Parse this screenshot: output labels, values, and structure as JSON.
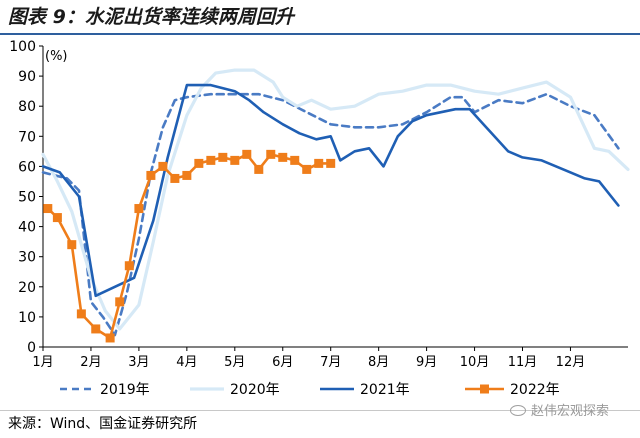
{
  "title": "图表 9：水泥出货率连续两周回升",
  "source": "来源：Wind、国金证券研究所",
  "watermark": "赵伟宏观探索",
  "chart_data": {
    "type": "line",
    "unit_label": "(%)",
    "ylim": [
      0,
      100
    ],
    "yticks": [
      0,
      10,
      20,
      30,
      40,
      50,
      60,
      70,
      80,
      90,
      100
    ],
    "xlim": [
      1,
      13.2
    ],
    "xticks": [
      1,
      2,
      3,
      4,
      5,
      6,
      7,
      8,
      9,
      10,
      11,
      12
    ],
    "xtick_labels": [
      "1月",
      "2月",
      "3月",
      "4月",
      "5月",
      "6月",
      "7月",
      "8月",
      "9月",
      "10月",
      "11月",
      "12月"
    ],
    "grid": false,
    "legend_position": "bottom",
    "series": [
      {
        "name": "2019年",
        "color": "#4a7bc4",
        "style": "dashed",
        "x": [
          1,
          1.5,
          1.75,
          2.0,
          2.25,
          2.5,
          2.75,
          3.0,
          3.25,
          3.5,
          3.75,
          4.0,
          4.5,
          5.0,
          5.5,
          6.0,
          6.5,
          7.0,
          7.5,
          8.0,
          8.5,
          9.0,
          9.5,
          9.75,
          10.0,
          10.5,
          11.0,
          11.5,
          12.0,
          12.5,
          13.0
        ],
        "y": [
          58,
          56,
          52,
          15,
          10,
          4,
          18,
          36,
          58,
          73,
          82,
          83,
          84,
          84,
          84,
          82,
          78,
          74,
          73,
          73,
          74,
          78,
          83,
          83,
          78,
          82,
          81,
          84,
          80,
          77,
          66
        ]
      },
      {
        "name": "2020年",
        "color": "#d6e9f6",
        "style": "solid",
        "x": [
          1,
          1.3,
          1.6,
          2.0,
          2.3,
          2.6,
          3.0,
          3.3,
          3.6,
          4.0,
          4.3,
          4.6,
          5.0,
          5.4,
          5.8,
          6.0,
          6.3,
          6.6,
          7.0,
          7.5,
          8.0,
          8.5,
          9.0,
          9.5,
          10.0,
          10.5,
          11.0,
          11.5,
          12.0,
          12.5,
          12.8,
          13.2
        ],
        "y": [
          64,
          55,
          45,
          23,
          12,
          6,
          14,
          35,
          57,
          77,
          86,
          91,
          92,
          92,
          88,
          83,
          80,
          82,
          79,
          80,
          84,
          85,
          87,
          87,
          85,
          84,
          86,
          88,
          83,
          66,
          65,
          59
        ]
      },
      {
        "name": "2021年",
        "color": "#1f5fb4",
        "style": "solid",
        "x": [
          1,
          1.35,
          1.75,
          2.1,
          2.5,
          2.9,
          3.3,
          3.6,
          4.0,
          4.5,
          5.0,
          5.3,
          5.6,
          6.0,
          6.35,
          6.7,
          7.0,
          7.2,
          7.5,
          7.8,
          8.1,
          8.4,
          8.7,
          9.0,
          9.3,
          9.6,
          9.9,
          10.3,
          10.7,
          11.0,
          11.4,
          11.7,
          12.0,
          12.3,
          12.6,
          13.0
        ],
        "y": [
          60,
          58,
          50,
          17,
          20,
          23,
          42,
          63,
          87,
          87,
          85,
          82,
          78,
          74,
          71,
          69,
          70,
          62,
          65,
          66,
          60,
          70,
          75,
          77,
          78,
          79,
          79,
          72,
          65,
          63,
          62,
          60,
          58,
          56,
          55,
          47
        ]
      },
      {
        "name": "2022年",
        "color": "#ef7d1a",
        "style": "solid",
        "marker": "square",
        "x": [
          1.1,
          1.3,
          1.6,
          1.8,
          2.1,
          2.4,
          2.6,
          2.8,
          3.0,
          3.25,
          3.5,
          3.75,
          4.0,
          4.25,
          4.5,
          4.75,
          5.0,
          5.25,
          5.5,
          5.75,
          6.0,
          6.25,
          6.5,
          6.75,
          7.0
        ],
        "y": [
          46,
          43,
          34,
          11,
          6,
          3,
          15,
          27,
          46,
          57,
          60,
          56,
          57,
          61,
          62,
          63,
          62,
          64,
          59,
          64,
          63,
          62,
          59,
          61,
          61
        ]
      }
    ]
  }
}
